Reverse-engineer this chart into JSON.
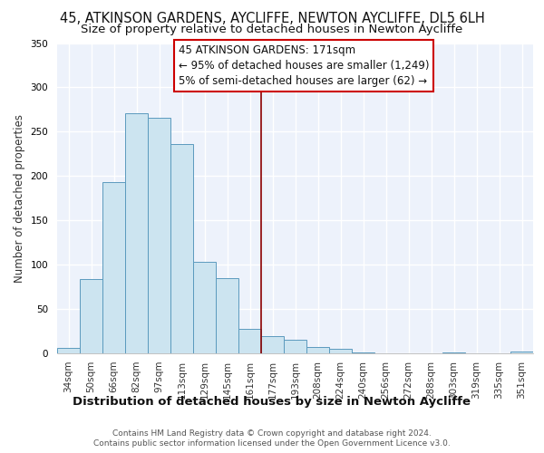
{
  "title1": "45, ATKINSON GARDENS, AYCLIFFE, NEWTON AYCLIFFE, DL5 6LH",
  "title2": "Size of property relative to detached houses in Newton Aycliffe",
  "xlabel": "Distribution of detached houses by size in Newton Aycliffe",
  "ylabel": "Number of detached properties",
  "bar_labels": [
    "34sqm",
    "50sqm",
    "66sqm",
    "82sqm",
    "97sqm",
    "113sqm",
    "129sqm",
    "145sqm",
    "161sqm",
    "177sqm",
    "193sqm",
    "208sqm",
    "224sqm",
    "240sqm",
    "256sqm",
    "272sqm",
    "288sqm",
    "303sqm",
    "319sqm",
    "335sqm",
    "351sqm"
  ],
  "bar_values": [
    6,
    84,
    193,
    271,
    266,
    236,
    103,
    85,
    28,
    19,
    15,
    7,
    5,
    1,
    0,
    0,
    0,
    1,
    0,
    0,
    2
  ],
  "bar_color": "#cce4f0",
  "bar_edge_color": "#5b9abe",
  "vline_color": "#8b0000",
  "ylim": [
    0,
    350
  ],
  "yticks": [
    0,
    50,
    100,
    150,
    200,
    250,
    300,
    350
  ],
  "annotation_title": "45 ATKINSON GARDENS: 171sqm",
  "annotation_line1": "← 95% of detached houses are smaller (1,249)",
  "annotation_line2": "5% of semi-detached houses are larger (62) →",
  "footer1": "Contains HM Land Registry data © Crown copyright and database right 2024.",
  "footer2": "Contains public sector information licensed under the Open Government Licence v3.0.",
  "bg_color": "#edf2fb",
  "grid_color": "#ffffff",
  "title1_fontsize": 10.5,
  "title2_fontsize": 9.5,
  "xlabel_fontsize": 9.5,
  "ylabel_fontsize": 8.5,
  "tick_fontsize": 7.5,
  "annotation_fontsize": 8.5,
  "footer_fontsize": 6.5
}
